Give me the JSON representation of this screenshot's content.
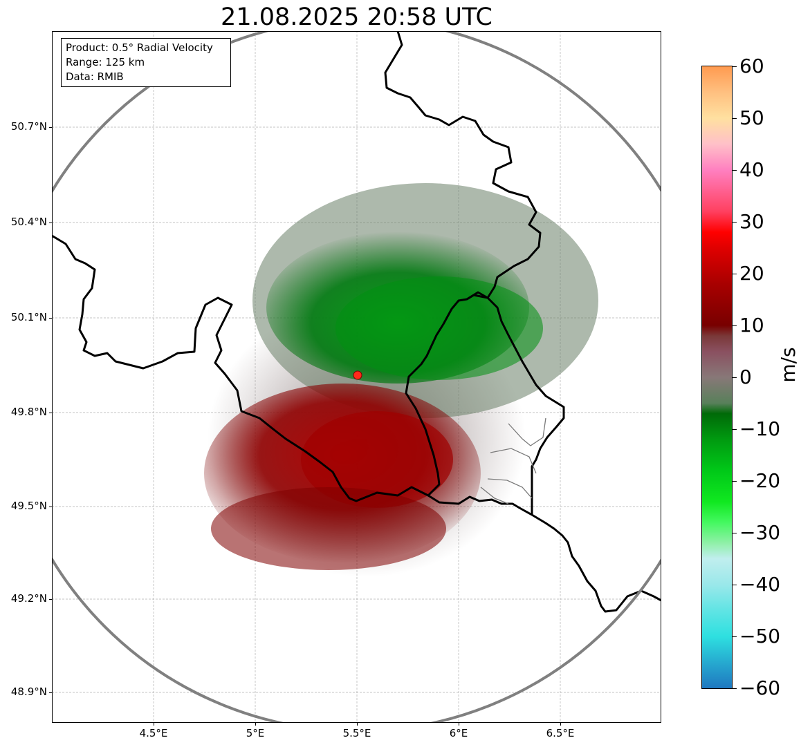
{
  "title": "21.08.2025 20:58 UTC",
  "info_box": {
    "product": "Product: 0.5° Radial Velocity",
    "range": "Range: 125 km",
    "data": "Data: RMIB"
  },
  "map": {
    "lon_range": [
      4.0,
      7.0
    ],
    "lat_range": [
      48.8,
      51.0
    ],
    "radar_site": {
      "lon": 5.505,
      "lat": 49.915
    },
    "range_km": 125,
    "lat_ticks": [
      {
        "value": 50.7,
        "label": "50.7°N"
      },
      {
        "value": 50.4,
        "label": "50.4°N"
      },
      {
        "value": 50.1,
        "label": "50.1°N"
      },
      {
        "value": 49.8,
        "label": "49.8°N"
      },
      {
        "value": 49.5,
        "label": "49.5°N"
      },
      {
        "value": 49.2,
        "label": "49.2°N"
      },
      {
        "value": 48.9,
        "label": "48.9°N"
      }
    ],
    "lon_ticks": [
      {
        "value": 4.5,
        "label": "4.5°E"
      },
      {
        "value": 5.0,
        "label": "5°E"
      },
      {
        "value": 5.5,
        "label": "5.5°E"
      },
      {
        "value": 6.0,
        "label": "6°E"
      },
      {
        "value": 6.5,
        "label": "6.5°E"
      }
    ],
    "colors": {
      "range_ring": "#808080",
      "border": "#000000",
      "grid": "#b0b0b0",
      "radar_marker": "#ff2a1a"
    }
  },
  "colorbar": {
    "unit": "m/s",
    "min": -60,
    "max": 60,
    "ticks": [
      {
        "value": 60,
        "label": "60"
      },
      {
        "value": 50,
        "label": "50"
      },
      {
        "value": 40,
        "label": "40"
      },
      {
        "value": 30,
        "label": "30"
      },
      {
        "value": 20,
        "label": "20"
      },
      {
        "value": 10,
        "label": "10"
      },
      {
        "value": 0,
        "label": "0"
      },
      {
        "value": -10,
        "label": "−10"
      },
      {
        "value": -20,
        "label": "−20"
      },
      {
        "value": -30,
        "label": "−30"
      },
      {
        "value": -40,
        "label": "−40"
      },
      {
        "value": -50,
        "label": "−50"
      },
      {
        "value": -60,
        "label": "−60"
      }
    ],
    "stops": [
      {
        "v": -60,
        "c": "#1f78c0"
      },
      {
        "v": -55,
        "c": "#26aad0"
      },
      {
        "v": -50,
        "c": "#2ee0e0"
      },
      {
        "v": -45,
        "c": "#60e4e4"
      },
      {
        "v": -40,
        "c": "#9ae8ea"
      },
      {
        "v": -35,
        "c": "#c0eeee"
      },
      {
        "v": -32,
        "c": "#90f0a8"
      },
      {
        "v": -28,
        "c": "#44f860"
      },
      {
        "v": -24,
        "c": "#10e820"
      },
      {
        "v": -18,
        "c": "#00c818"
      },
      {
        "v": -12,
        "c": "#009a10"
      },
      {
        "v": -7,
        "c": "#006a08"
      },
      {
        "v": -5,
        "c": "#58805a"
      },
      {
        "v": 0,
        "c": "#887878"
      },
      {
        "v": 5,
        "c": "#8a5060"
      },
      {
        "v": 8,
        "c": "#7a3838"
      },
      {
        "v": 10,
        "c": "#780000"
      },
      {
        "v": 18,
        "c": "#a80000"
      },
      {
        "v": 25,
        "c": "#e00000"
      },
      {
        "v": 28,
        "c": "#ff0000"
      },
      {
        "v": 32,
        "c": "#ff4060"
      },
      {
        "v": 40,
        "c": "#ff80c0"
      },
      {
        "v": 45,
        "c": "#ffc0c8"
      },
      {
        "v": 50,
        "c": "#ffe0a0"
      },
      {
        "v": 55,
        "c": "#ffc080"
      },
      {
        "v": 60,
        "c": "#ff9a50"
      }
    ]
  }
}
